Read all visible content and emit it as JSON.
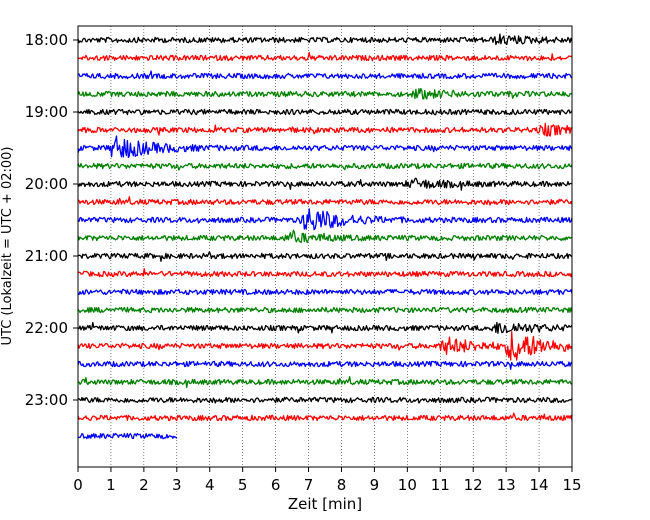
{
  "chart_data": {
    "type": "line",
    "xlabel": "Zeit  [min]",
    "ylabel": "UTC (Lokalzeit = UTC + 02:00)",
    "xlim": [
      0,
      15
    ],
    "x_ticks": [
      "0",
      "1",
      "2",
      "3",
      "4",
      "5",
      "6",
      "7",
      "8",
      "9",
      "10",
      "11",
      "12",
      "13",
      "14",
      "15"
    ],
    "y_tick_labels": [
      "18:00",
      "19:00",
      "20:00",
      "21:00",
      "22:00",
      "23:00"
    ],
    "grid": "vertical dotted",
    "trace_colors": [
      "#000000",
      "#ff0000",
      "#0000ff",
      "#008000"
    ],
    "traces": [
      {
        "start": "18:00",
        "end_min": 15,
        "color": "#000000",
        "events": [
          {
            "t": 12.8,
            "amp": 0.3
          }
        ]
      },
      {
        "start": "18:15",
        "end_min": 15,
        "color": "#ff0000",
        "events": []
      },
      {
        "start": "18:30",
        "end_min": 15,
        "color": "#0000ff",
        "events": []
      },
      {
        "start": "18:45",
        "end_min": 15,
        "color": "#008000",
        "events": [
          {
            "t": 10.3,
            "amp": 0.3
          }
        ]
      },
      {
        "start": "19:00",
        "end_min": 15,
        "color": "#000000",
        "events": []
      },
      {
        "start": "19:15",
        "end_min": 15,
        "color": "#ff0000",
        "events": [
          {
            "t": 14.2,
            "amp": 0.35
          }
        ]
      },
      {
        "start": "19:30",
        "end_min": 15,
        "color": "#0000ff",
        "events": [
          {
            "t": 1.2,
            "amp": 0.9
          }
        ]
      },
      {
        "start": "19:45",
        "end_min": 15,
        "color": "#008000",
        "events": []
      },
      {
        "start": "20:00",
        "end_min": 15,
        "color": "#000000",
        "events": [
          {
            "t": 10.2,
            "amp": 0.3
          }
        ]
      },
      {
        "start": "20:15",
        "end_min": 15,
        "color": "#ff0000",
        "events": []
      },
      {
        "start": "20:30",
        "end_min": 15,
        "color": "#0000ff",
        "events": [
          {
            "t": 7.0,
            "amp": 1.0
          }
        ]
      },
      {
        "start": "20:45",
        "end_min": 15,
        "color": "#008000",
        "events": [
          {
            "t": 6.5,
            "amp": 0.3
          }
        ]
      },
      {
        "start": "21:00",
        "end_min": 15,
        "color": "#000000",
        "events": []
      },
      {
        "start": "21:15",
        "end_min": 15,
        "color": "#ff0000",
        "events": []
      },
      {
        "start": "21:30",
        "end_min": 15,
        "color": "#0000ff",
        "events": []
      },
      {
        "start": "21:45",
        "end_min": 15,
        "color": "#008000",
        "events": []
      },
      {
        "start": "22:00",
        "end_min": 15,
        "color": "#000000",
        "events": [
          {
            "t": 12.8,
            "amp": 0.45
          }
        ]
      },
      {
        "start": "22:15",
        "end_min": 15,
        "color": "#ff0000",
        "events": [
          {
            "t": 11.2,
            "amp": 0.6
          },
          {
            "t": 13.2,
            "amp": 1.2
          }
        ]
      },
      {
        "start": "22:30",
        "end_min": 15,
        "color": "#0000ff",
        "events": []
      },
      {
        "start": "22:45",
        "end_min": 15,
        "color": "#008000",
        "events": []
      },
      {
        "start": "23:00",
        "end_min": 15,
        "color": "#000000",
        "events": []
      },
      {
        "start": "23:15",
        "end_min": 15,
        "color": "#ff0000",
        "events": []
      },
      {
        "start": "23:30",
        "end_min": 3,
        "color": "#0000ff",
        "events": []
      }
    ]
  }
}
